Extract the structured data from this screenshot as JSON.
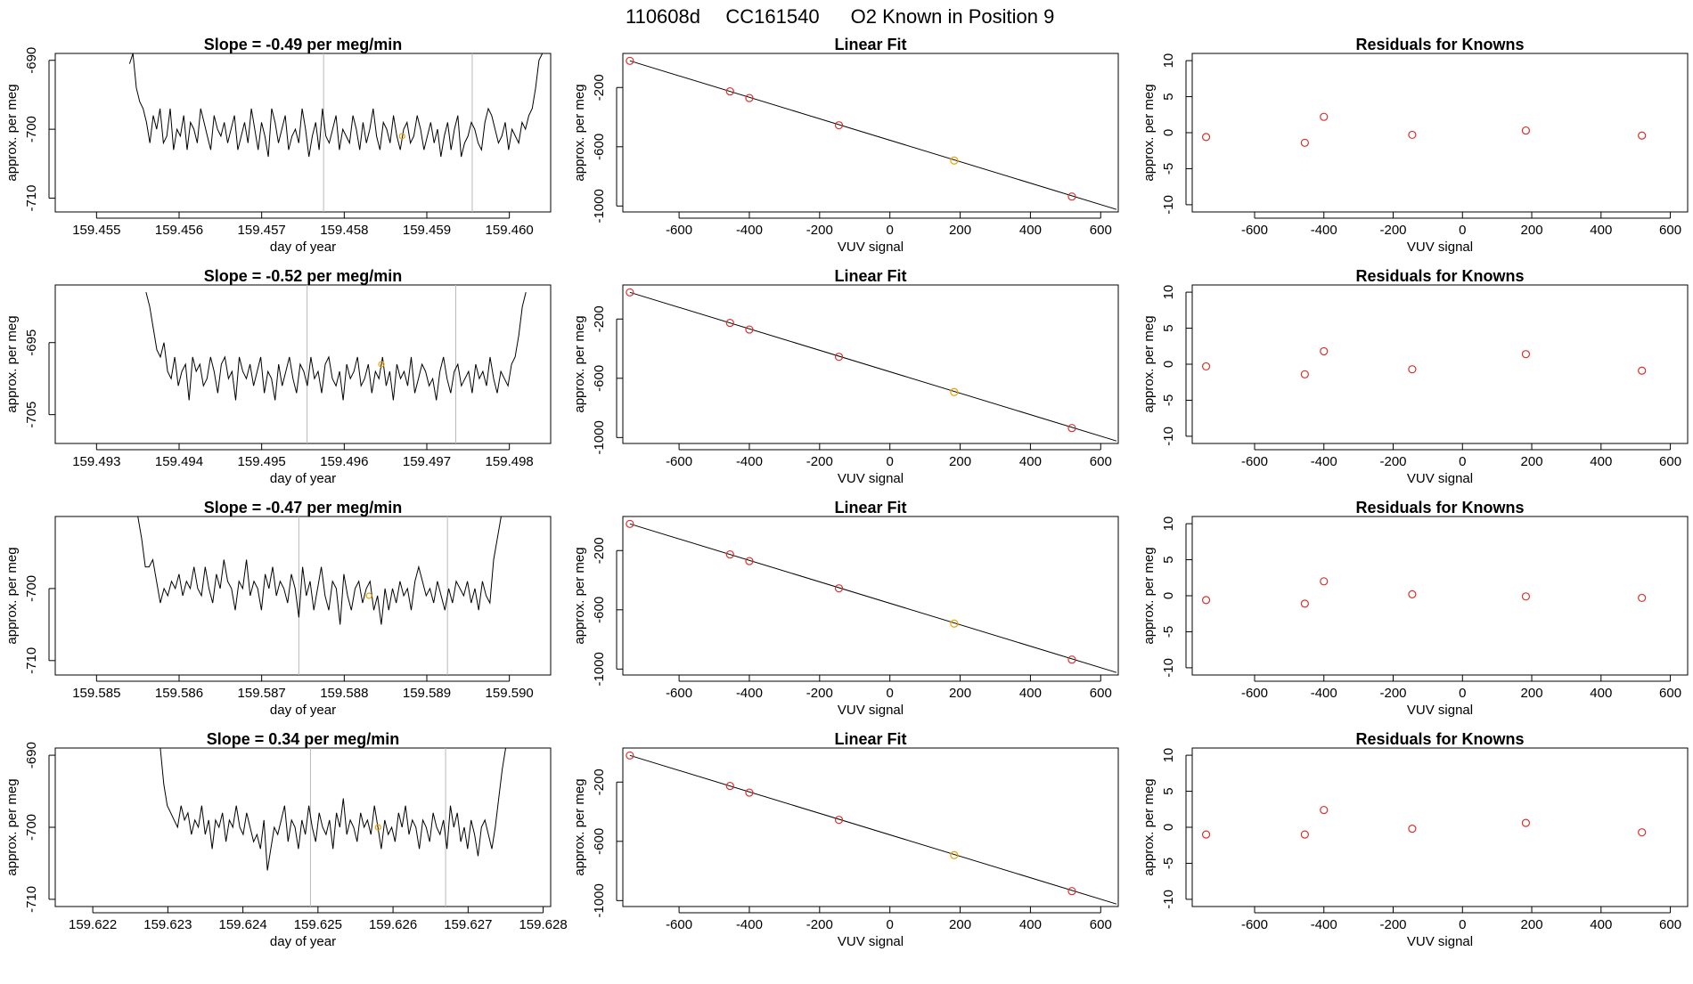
{
  "title_parts": [
    "110608d",
    "CC161540",
    "O2 Known in Position  9"
  ],
  "colors": {
    "line": "#000000",
    "point_red": "#d9302a",
    "point_orange": "#f0a000",
    "vline": "#b8b8b8",
    "frame": "#000000"
  },
  "chart_data": [
    {
      "type": "line",
      "panel": "time-series",
      "row": 1,
      "title": "Slope =  -0.49  per meg/min",
      "xlabel": "day of year",
      "ylabel": "approx. per meg",
      "xlim": [
        159.4545,
        159.4605
      ],
      "ylim": [
        -712,
        -689
      ],
      "xticks": [
        159.455,
        159.456,
        159.457,
        159.458,
        159.459,
        159.46
      ],
      "xtick_labels": [
        "159.455",
        "159.456",
        "159.457",
        "159.458",
        "159.459",
        "159.460"
      ],
      "yticks": [
        -690,
        -700,
        -710
      ],
      "ytick_labels": [
        "-690",
        "-700",
        "-710"
      ],
      "series_x_range": [
        159.4554,
        159.4604
      ],
      "series": [
        {
          "y": [
            -690.5,
            -689,
            -694,
            -696,
            -697,
            -699,
            -702,
            -698,
            -700,
            -697,
            -702,
            -701,
            -697,
            -703,
            -700,
            -701,
            -698,
            -703,
            -699,
            -700,
            -702,
            -697,
            -699,
            -701,
            -703,
            -698,
            -700,
            -701,
            -699,
            -702,
            -700,
            -698,
            -703,
            -701,
            -699,
            -702,
            -697,
            -700,
            -703,
            -699,
            -701,
            -704,
            -697,
            -699,
            -702,
            -700,
            -698,
            -703,
            -701,
            -700,
            -702,
            -697,
            -700,
            -704,
            -701,
            -699,
            -703,
            -697,
            -701,
            -702,
            -700,
            -698,
            -703,
            -700,
            -701,
            -702,
            -698,
            -700,
            -703,
            -699,
            -702,
            -700,
            -697,
            -701,
            -703,
            -699,
            -700,
            -702,
            -698,
            -701,
            -703,
            -700,
            -699,
            -702,
            -701,
            -698,
            -700,
            -703,
            -701,
            -699,
            -702,
            -700,
            -704,
            -701,
            -699,
            -703,
            -700,
            -698,
            -704,
            -702,
            -701,
            -699,
            -700,
            -702,
            -703,
            -699,
            -697,
            -698,
            -700,
            -702,
            -701,
            -699,
            -703,
            -700,
            -701,
            -702,
            -699,
            -700,
            -698,
            -697,
            -694,
            -690,
            -689
          ]
        }
      ],
      "vlines": [
        159.45775,
        159.45955
      ],
      "highlight_point": {
        "x": 159.4587,
        "y": -701
      }
    },
    {
      "type": "scatter",
      "panel": "linear-fit",
      "row": 1,
      "title": "Linear Fit",
      "xlabel": "VUV signal",
      "ylabel": "approx. per meg",
      "xlim": [
        -760,
        650
      ],
      "ylim": [
        -1040,
        30
      ],
      "xticks": [
        -600,
        -400,
        -200,
        0,
        200,
        400,
        600
      ],
      "yticks": [
        -200,
        -600,
        -1000
      ],
      "points": [
        [
          -740,
          -20
        ],
        [
          -455,
          -226
        ],
        [
          -400,
          -271
        ],
        [
          -145,
          -455
        ],
        [
          183,
          -693
        ],
        [
          518,
          -936
        ]
      ],
      "highlight_index": 4,
      "fit_line": [
        [
          -740,
          -20
        ],
        [
          645,
          -1023
        ]
      ]
    },
    {
      "type": "scatter",
      "panel": "residuals",
      "row": 1,
      "title": "Residuals for Knowns",
      "xlabel": "VUV signal",
      "ylabel": "approx. per meg",
      "xlim": [
        -780,
        650
      ],
      "ylim": [
        -11,
        11
      ],
      "xticks": [
        -600,
        -400,
        -200,
        0,
        200,
        400,
        600
      ],
      "yticks": [
        10,
        5,
        0,
        -5,
        -10
      ],
      "points": [
        [
          -740,
          -0.6
        ],
        [
          -455,
          -1.4
        ],
        [
          -400,
          2.2
        ],
        [
          -145,
          -0.3
        ],
        [
          183,
          0.3
        ],
        [
          518,
          -0.4
        ]
      ]
    },
    {
      "type": "line",
      "panel": "time-series",
      "row": 2,
      "title": "Slope =  -0.52  per meg/min",
      "xlabel": "day of year",
      "ylabel": "approx. per meg",
      "xlim": [
        159.4925,
        159.4985
      ],
      "ylim": [
        -709,
        -687
      ],
      "xticks": [
        159.493,
        159.494,
        159.495,
        159.496,
        159.497,
        159.498
      ],
      "xtick_labels": [
        "159.493",
        "159.494",
        "159.495",
        "159.496",
        "159.497",
        "159.498"
      ],
      "yticks": [
        -695,
        -705
      ],
      "ytick_labels": [
        "-695",
        "-705"
      ],
      "series_x_range": [
        159.4936,
        159.4982
      ],
      "series": [
        {
          "y": [
            -688,
            -690,
            -693,
            -696,
            -697,
            -695,
            -699,
            -700,
            -697,
            -701,
            -699,
            -698,
            -703,
            -697,
            -699,
            -698,
            -701,
            -700,
            -697,
            -699,
            -702,
            -698,
            -697,
            -700,
            -699,
            -703,
            -697,
            -699,
            -700,
            -698,
            -701,
            -699,
            -697,
            -702,
            -699,
            -700,
            -703,
            -698,
            -701,
            -699,
            -697,
            -700,
            -702,
            -698,
            -699,
            -701,
            -697,
            -700,
            -699,
            -702,
            -698,
            -697,
            -700,
            -701,
            -699,
            -703,
            -698,
            -700,
            -699,
            -697,
            -701,
            -700,
            -698,
            -702,
            -699,
            -700,
            -697,
            -701,
            -699,
            -703,
            -698,
            -700,
            -699,
            -701,
            -697,
            -702,
            -700,
            -698,
            -699,
            -701,
            -700,
            -703,
            -699,
            -697,
            -700,
            -702,
            -699,
            -698,
            -701,
            -700,
            -699,
            -702,
            -698,
            -700,
            -699,
            -701,
            -697,
            -700,
            -702,
            -699,
            -700,
            -701,
            -698,
            -697,
            -694,
            -690,
            -688
          ]
        }
      ],
      "vlines": [
        159.49555,
        159.49735
      ],
      "highlight_point": {
        "x": 159.49645,
        "y": -698
      }
    },
    {
      "type": "scatter",
      "panel": "linear-fit",
      "row": 2,
      "title": "Linear Fit",
      "xlabel": "VUV signal",
      "ylabel": "approx. per meg",
      "xlim": [
        -760,
        650
      ],
      "ylim": [
        -1040,
        30
      ],
      "xticks": [
        -600,
        -400,
        -200,
        0,
        200,
        400,
        600
      ],
      "yticks": [
        -200,
        -600,
        -1000
      ],
      "points": [
        [
          -740,
          -20
        ],
        [
          -455,
          -226
        ],
        [
          -400,
          -271
        ],
        [
          -145,
          -455
        ],
        [
          183,
          -693
        ],
        [
          518,
          -936
        ]
      ],
      "highlight_index": 4,
      "fit_line": [
        [
          -740,
          -20
        ],
        [
          645,
          -1023
        ]
      ]
    },
    {
      "type": "scatter",
      "panel": "residuals",
      "row": 2,
      "title": "Residuals for Knowns",
      "xlabel": "VUV signal",
      "ylabel": "approx. per meg",
      "xlim": [
        -780,
        650
      ],
      "ylim": [
        -11,
        11
      ],
      "xticks": [
        -600,
        -400,
        -200,
        0,
        200,
        400,
        600
      ],
      "yticks": [
        10,
        5,
        0,
        -5,
        -10
      ],
      "points": [
        [
          -740,
          -0.3
        ],
        [
          -455,
          -1.4
        ],
        [
          -400,
          1.8
        ],
        [
          -145,
          -0.7
        ],
        [
          183,
          1.4
        ],
        [
          518,
          -0.9
        ]
      ]
    },
    {
      "type": "line",
      "panel": "time-series",
      "row": 3,
      "title": "Slope =  -0.47  per meg/min",
      "xlabel": "day of year",
      "ylabel": "approx. per meg",
      "xlim": [
        159.5845,
        159.5905
      ],
      "ylim": [
        -712,
        -690
      ],
      "xticks": [
        159.585,
        159.586,
        159.587,
        159.588,
        159.589,
        159.59
      ],
      "xtick_labels": [
        "159.585",
        "159.586",
        "159.587",
        "159.588",
        "159.589",
        "159.590"
      ],
      "yticks": [
        -700,
        -710
      ],
      "ytick_labels": [
        "-700",
        "-710"
      ],
      "series_x_range": [
        159.5855,
        159.5899
      ],
      "series": [
        {
          "y": [
            -690,
            -693,
            -697,
            -697,
            -696,
            -699,
            -702,
            -700,
            -701,
            -699,
            -700,
            -698,
            -701,
            -699,
            -700,
            -697,
            -700,
            -701,
            -697,
            -700,
            -702,
            -698,
            -700,
            -696,
            -699,
            -700,
            -703,
            -699,
            -700,
            -696,
            -701,
            -699,
            -700,
            -703,
            -698,
            -700,
            -697,
            -701,
            -699,
            -700,
            -702,
            -698,
            -700,
            -704,
            -697,
            -701,
            -699,
            -703,
            -700,
            -697,
            -701,
            -703,
            -699,
            -700,
            -705,
            -698,
            -701,
            -703,
            -700,
            -699,
            -702,
            -700,
            -699,
            -703,
            -701,
            -705,
            -700,
            -703,
            -700,
            -702,
            -699,
            -701,
            -700,
            -703,
            -699,
            -697,
            -699,
            -701,
            -700,
            -702,
            -699,
            -701,
            -703,
            -700,
            -702,
            -699,
            -700,
            -701,
            -699,
            -702,
            -700,
            -703,
            -699,
            -701,
            -702,
            -696,
            -693,
            -690
          ]
        }
      ],
      "vlines": [
        159.58745,
        159.58925
      ],
      "highlight_point": {
        "x": 159.5883,
        "y": -701
      }
    },
    {
      "type": "scatter",
      "panel": "linear-fit",
      "row": 3,
      "title": "Linear Fit",
      "xlabel": "VUV signal",
      "ylabel": "approx. per meg",
      "xlim": [
        -760,
        650
      ],
      "ylim": [
        -1040,
        30
      ],
      "xticks": [
        -600,
        -400,
        -200,
        0,
        200,
        400,
        600
      ],
      "yticks": [
        -200,
        -600,
        -1000
      ],
      "points": [
        [
          -740,
          -20
        ],
        [
          -455,
          -226
        ],
        [
          -400,
          -271
        ],
        [
          -145,
          -455
        ],
        [
          183,
          -693
        ],
        [
          518,
          -936
        ]
      ],
      "highlight_index": 4,
      "fit_line": [
        [
          -740,
          -20
        ],
        [
          645,
          -1023
        ]
      ]
    },
    {
      "type": "scatter",
      "panel": "residuals",
      "row": 3,
      "title": "Residuals for Knowns",
      "xlabel": "VUV signal",
      "ylabel": "approx. per meg",
      "xlim": [
        -780,
        650
      ],
      "ylim": [
        -11,
        11
      ],
      "xticks": [
        -600,
        -400,
        -200,
        0,
        200,
        400,
        600
      ],
      "yticks": [
        10,
        5,
        0,
        -5,
        -10
      ],
      "points": [
        [
          -740,
          -0.6
        ],
        [
          -455,
          -1.1
        ],
        [
          -400,
          2.0
        ],
        [
          -145,
          0.2
        ],
        [
          183,
          -0.1
        ],
        [
          518,
          -0.3
        ]
      ]
    },
    {
      "type": "line",
      "panel": "time-series",
      "row": 4,
      "title": "Slope =  0.34  per meg/min",
      "xlabel": "day of year",
      "ylabel": "approx. per meg",
      "xlim": [
        159.6215,
        159.6281
      ],
      "ylim": [
        -711,
        -689
      ],
      "xticks": [
        159.622,
        159.623,
        159.624,
        159.625,
        159.626,
        159.627,
        159.628
      ],
      "xtick_labels": [
        "159.622",
        "159.623",
        "159.624",
        "159.625",
        "159.626",
        "159.627",
        "159.628"
      ],
      "yticks": [
        -690,
        -700,
        -710
      ],
      "ytick_labels": [
        "-690",
        "-700",
        "-710"
      ],
      "series_x_range": [
        159.6229,
        159.6275
      ],
      "series": [
        {
          "y": [
            -689,
            -694,
            -697,
            -698,
            -699,
            -700,
            -697,
            -699,
            -698,
            -701,
            -699,
            -700,
            -697,
            -701,
            -699,
            -703,
            -699,
            -700,
            -698,
            -702,
            -699,
            -700,
            -697,
            -700,
            -701,
            -698,
            -700,
            -702,
            -701,
            -703,
            -699,
            -706,
            -703,
            -700,
            -701,
            -699,
            -697,
            -702,
            -699,
            -700,
            -703,
            -699,
            -701,
            -697,
            -700,
            -702,
            -698,
            -700,
            -701,
            -699,
            -703,
            -698,
            -700,
            -696,
            -701,
            -699,
            -700,
            -702,
            -698,
            -700,
            -699,
            -701,
            -697,
            -700,
            -703,
            -699,
            -701,
            -700,
            -702,
            -698,
            -700,
            -697,
            -701,
            -699,
            -700,
            -703,
            -699,
            -700,
            -702,
            -698,
            -700,
            -701,
            -699,
            -703,
            -697,
            -700,
            -698,
            -702,
            -700,
            -703,
            -699,
            -701,
            -704,
            -700,
            -699,
            -701,
            -703,
            -700,
            -696,
            -692,
            -689
          ]
        }
      ],
      "vlines": [
        159.6249,
        159.6267
      ],
      "highlight_point": {
        "x": 159.6258,
        "y": -700
      }
    },
    {
      "type": "scatter",
      "panel": "linear-fit",
      "row": 4,
      "title": "Linear Fit",
      "xlabel": "VUV signal",
      "ylabel": "approx. per meg",
      "xlim": [
        -760,
        650
      ],
      "ylim": [
        -1040,
        30
      ],
      "xticks": [
        -600,
        -400,
        -200,
        0,
        200,
        400,
        600
      ],
      "yticks": [
        -200,
        -600,
        -1000
      ],
      "points": [
        [
          -740,
          -20
        ],
        [
          -455,
          -226
        ],
        [
          -400,
          -271
        ],
        [
          -145,
          -455
        ],
        [
          183,
          -693
        ],
        [
          518,
          -936
        ]
      ],
      "highlight_index": 4,
      "fit_line": [
        [
          -740,
          -20
        ],
        [
          645,
          -1023
        ]
      ]
    },
    {
      "type": "scatter",
      "panel": "residuals",
      "row": 4,
      "title": "Residuals for Knowns",
      "xlabel": "VUV signal",
      "ylabel": "approx. per meg",
      "xlim": [
        -780,
        650
      ],
      "ylim": [
        -11,
        11
      ],
      "xticks": [
        -600,
        -400,
        -200,
        0,
        200,
        400,
        600
      ],
      "yticks": [
        10,
        5,
        0,
        -5,
        -10
      ],
      "points": [
        [
          -740,
          -1.0
        ],
        [
          -455,
          -1.0
        ],
        [
          -400,
          2.4
        ],
        [
          -145,
          -0.2
        ],
        [
          183,
          0.6
        ],
        [
          518,
          -0.7
        ]
      ]
    }
  ]
}
